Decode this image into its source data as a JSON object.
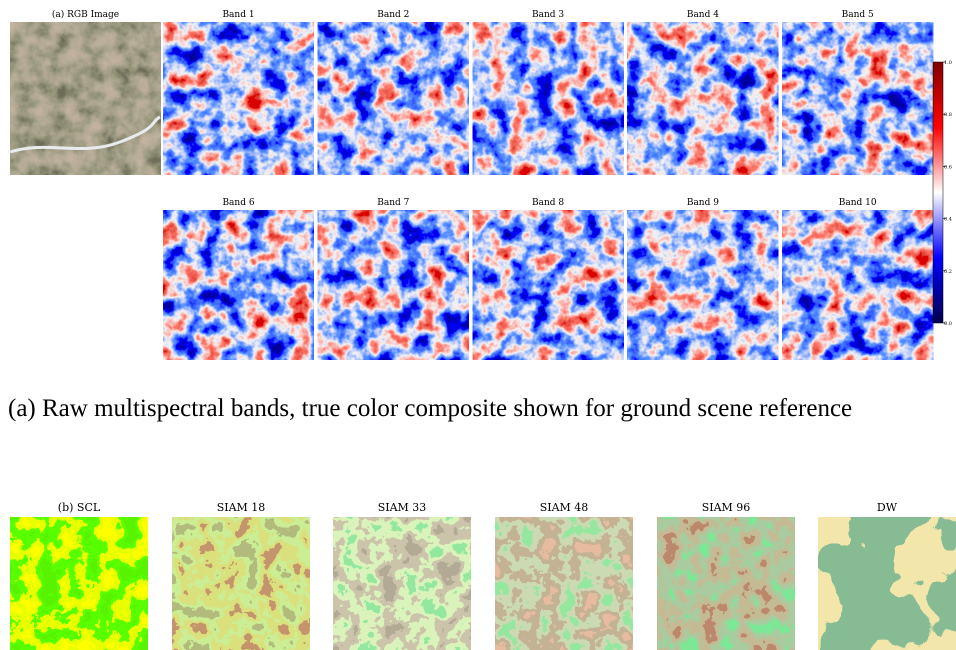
{
  "figure_a": {
    "panels": [
      "(a) RGB Image",
      "Band 1",
      "Band 2",
      "Band 3",
      "Band 4",
      "Band 5",
      "Band 6",
      "Band 7",
      "Band 8",
      "Band 9",
      "Band 10"
    ],
    "colorbar": {
      "ticks": [
        {
          "value": 0,
          "label": "0.0"
        },
        {
          "value": 0.2,
          "label": "0.2"
        },
        {
          "value": 0.4,
          "label": "0.4"
        },
        {
          "value": 0.6,
          "label": "0.6"
        },
        {
          "value": 0.8,
          "label": "0.8"
        },
        {
          "value": 1,
          "label": "1.0"
        }
      ]
    }
  },
  "caption_a": "(a) Raw multispectral bands, true color composite shown for ground scene reference",
  "figure_b": {
    "panels": [
      "(b) SCL",
      "SIAM 18",
      "SIAM 33",
      "SIAM 48",
      "SIAM 96",
      "DW"
    ]
  }
}
